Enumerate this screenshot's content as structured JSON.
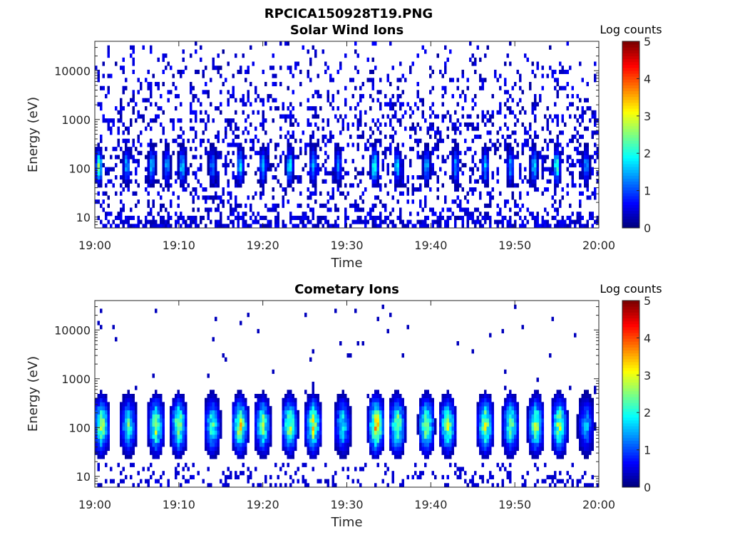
{
  "figure": {
    "title": "RPCICA150928T19.PNG"
  },
  "chart_data": [
    {
      "type": "heatmap",
      "title": "Solar Wind Ions",
      "xlabel": "Time",
      "ylabel": "Energy (eV)",
      "x_ticks": [
        "19:00",
        "19:10",
        "19:20",
        "19:30",
        "19:40",
        "19:50",
        "20:00"
      ],
      "y_ticks": [
        10,
        100,
        1000,
        10000
      ],
      "y_scale": "log",
      "ylim": [
        6,
        40000
      ],
      "xlim": [
        "19:00",
        "20:00"
      ],
      "colorbar": {
        "label": "Log counts",
        "ticks": [
          0,
          1,
          2,
          3,
          4,
          5
        ],
        "range": [
          0,
          5
        ],
        "colormap": "jet"
      },
      "bursts": [
        {
          "t": 0.5,
          "peak": 2.4
        },
        {
          "t": 3.8,
          "peak": 1.6
        },
        {
          "t": 6.8,
          "peak": 1.7
        },
        {
          "t": 8.6,
          "peak": 1.6
        },
        {
          "t": 10.4,
          "peak": 1.9
        },
        {
          "t": 14.0,
          "peak": 1.4
        },
        {
          "t": 17.3,
          "peak": 2.0
        },
        {
          "t": 20.0,
          "peak": 1.6
        },
        {
          "t": 23.2,
          "peak": 2.1
        },
        {
          "t": 26.0,
          "peak": 1.7
        },
        {
          "t": 29.0,
          "peak": 1.4
        },
        {
          "t": 33.3,
          "peak": 2.5
        },
        {
          "t": 36.0,
          "peak": 1.8
        },
        {
          "t": 39.5,
          "peak": 1.7
        },
        {
          "t": 43.0,
          "peak": 1.6
        },
        {
          "t": 46.5,
          "peak": 1.7
        },
        {
          "t": 49.5,
          "peak": 1.5
        },
        {
          "t": 52.3,
          "peak": 1.9
        },
        {
          "t": 55.0,
          "peak": 2.4
        },
        {
          "t": 58.5,
          "peak": 1.6
        }
      ]
    },
    {
      "type": "heatmap",
      "title": "Cometary Ions",
      "xlabel": "Time",
      "ylabel": "Energy (eV)",
      "x_ticks": [
        "19:00",
        "19:10",
        "19:20",
        "19:30",
        "19:40",
        "19:50",
        "20:00"
      ],
      "y_ticks": [
        10,
        100,
        1000,
        10000
      ],
      "y_scale": "log",
      "ylim": [
        6,
        40000
      ],
      "xlim": [
        "19:00",
        "20:00"
      ],
      "colorbar": {
        "label": "Log counts",
        "ticks": [
          0,
          1,
          2,
          3,
          4,
          5
        ],
        "range": [
          0,
          5
        ],
        "colormap": "jet"
      },
      "bursts": [
        {
          "t": 0.8,
          "peak": 2.8
        },
        {
          "t": 4.0,
          "peak": 2.2
        },
        {
          "t": 7.3,
          "peak": 2.8
        },
        {
          "t": 10.0,
          "peak": 2.9
        },
        {
          "t": 14.0,
          "peak": 2.3
        },
        {
          "t": 17.3,
          "peak": 3.1
        },
        {
          "t": 20.0,
          "peak": 2.6
        },
        {
          "t": 23.2,
          "peak": 2.9
        },
        {
          "t": 26.0,
          "peak": 3.0
        },
        {
          "t": 29.5,
          "peak": 2.0
        },
        {
          "t": 33.5,
          "peak": 3.6
        },
        {
          "t": 36.0,
          "peak": 2.9
        },
        {
          "t": 39.5,
          "peak": 2.9
        },
        {
          "t": 42.0,
          "peak": 2.9
        },
        {
          "t": 46.5,
          "peak": 2.9
        },
        {
          "t": 49.5,
          "peak": 2.6
        },
        {
          "t": 52.5,
          "peak": 2.8
        },
        {
          "t": 55.3,
          "peak": 2.9
        },
        {
          "t": 58.5,
          "peak": 1.6
        }
      ]
    }
  ]
}
